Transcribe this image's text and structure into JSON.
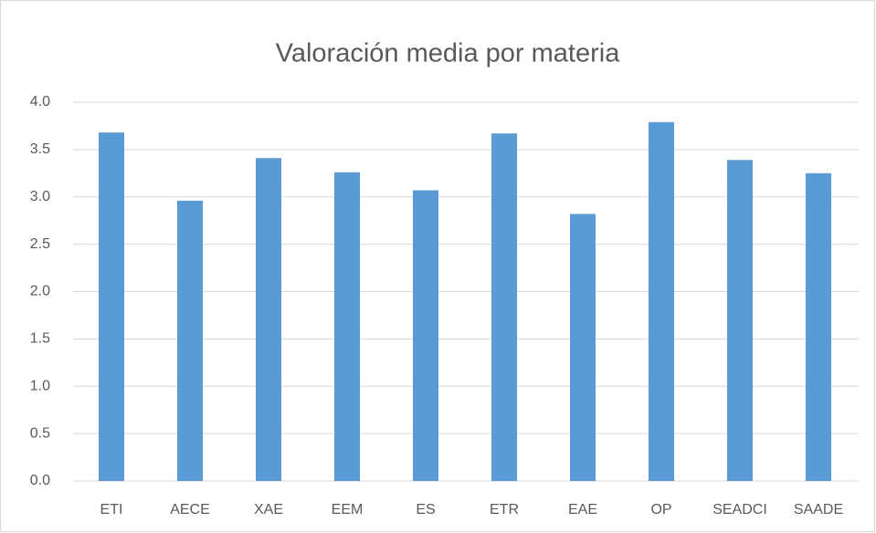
{
  "chart_data": {
    "type": "bar",
    "title": "Valoración media por materia",
    "categories": [
      "ETI",
      "AECE",
      "XAE",
      "EEM",
      "ES",
      "ETR",
      "EAE",
      "OP",
      "SEADCI",
      "SAADE"
    ],
    "values": [
      3.68,
      2.96,
      3.41,
      3.26,
      3.07,
      3.67,
      2.82,
      3.79,
      3.39,
      3.25
    ],
    "color": "#5b9bd5",
    "ylim": [
      0,
      4
    ],
    "yticks": [
      {
        "value": 0,
        "label": "0.0"
      },
      0.5,
      {
        "value": 1,
        "label": "1.0"
      },
      1.5,
      {
        "value": 2,
        "label": "2.0"
      },
      2.5,
      {
        "value": 3,
        "label": "3.0"
      },
      3.5,
      {
        "value": 4,
        "label": "4.0"
      }
    ],
    "grid": true
  }
}
